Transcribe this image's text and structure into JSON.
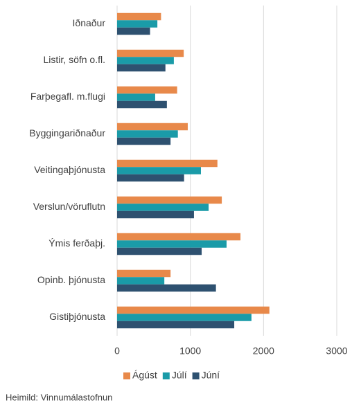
{
  "chart_data": {
    "type": "hbar",
    "categories": [
      "Iðnaður",
      "Listir, söfn o.fl.",
      "Farþegafl. m.flugi",
      "Byggingariðnaður",
      "Veitingaþjónusta",
      "Verslun/vöruflutn",
      "Ýmis ferðaþj.",
      "Opinb. þjónusta",
      "Gistiþjónusta"
    ],
    "series": [
      {
        "name": "Ágúst",
        "color": "#E8894A",
        "values": [
          600,
          910,
          820,
          965,
          1370,
          1430,
          1685,
          730,
          2080
        ]
      },
      {
        "name": "Júlí",
        "color": "#1A9BA8",
        "values": [
          550,
          775,
          520,
          830,
          1145,
          1250,
          1495,
          645,
          1835
        ]
      },
      {
        "name": "Júní",
        "color": "#2E5170",
        "values": [
          450,
          660,
          680,
          730,
          915,
          1050,
          1155,
          1350,
          1600
        ]
      }
    ],
    "xlim": [
      0,
      3000
    ],
    "xticks": [
      0,
      1000,
      2000,
      3000
    ],
    "grid": true,
    "legend": "bottom",
    "source": "Heimild: Vinnumálastofnun"
  }
}
